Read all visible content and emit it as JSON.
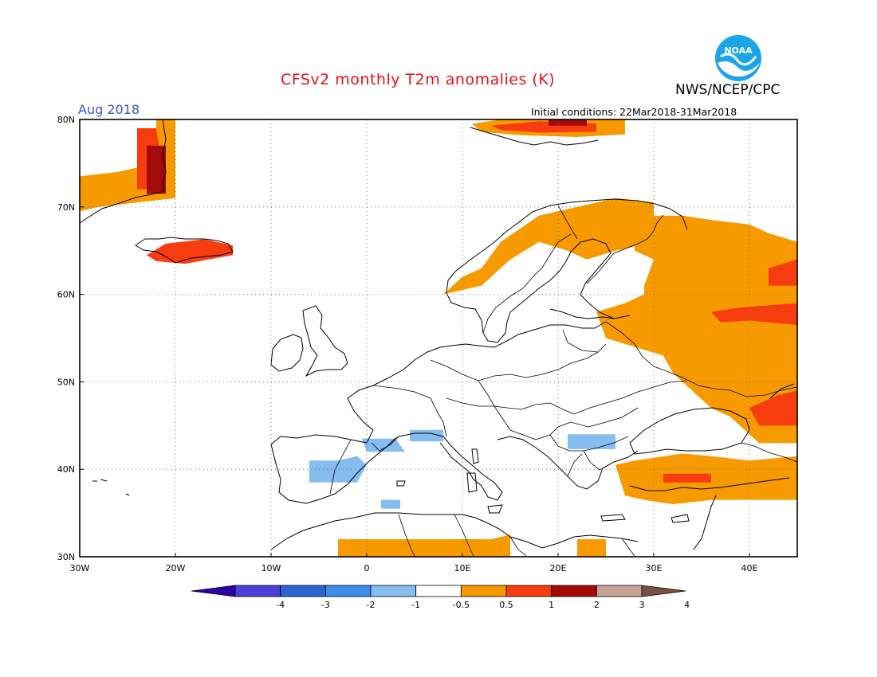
{
  "header": {
    "title": "CFSv2 monthly T2m anomalies (K)",
    "agency": "NWS/NCEP/CPC",
    "period": "Aug 2018",
    "initial_conditions": "Initial conditions: 22Mar2018-31Mar2018",
    "logo_text": "NOAA"
  },
  "map": {
    "lon_range": [
      -30,
      45
    ],
    "lat_range": [
      30,
      80
    ],
    "lon_ticks": [
      {
        "lon": -30,
        "label": "30W"
      },
      {
        "lon": -20,
        "label": "20W"
      },
      {
        "lon": -10,
        "label": "10W"
      },
      {
        "lon": 0,
        "label": "0"
      },
      {
        "lon": 10,
        "label": "10E"
      },
      {
        "lon": 20,
        "label": "20E"
      },
      {
        "lon": 30,
        "label": "30E"
      },
      {
        "lon": 40,
        "label": "40E"
      }
    ],
    "lat_ticks": [
      {
        "lat": 30,
        "label": "30N"
      },
      {
        "lat": 40,
        "label": "40N"
      },
      {
        "lat": 50,
        "label": "50N"
      },
      {
        "lat": 60,
        "label": "60N"
      },
      {
        "lat": 70,
        "label": "70N"
      },
      {
        "lat": 80,
        "label": "80N"
      }
    ],
    "grid": "dotted"
  },
  "colorbar": {
    "labels": [
      "-4",
      "-3",
      "-2",
      "-1",
      "-0.5",
      "0.5",
      "1",
      "2",
      "3",
      "4"
    ],
    "colors": [
      "#2b00a8",
      "#4a3fd6",
      "#2a64d4",
      "#3c8ee8",
      "#85bdf0",
      "#ffffff",
      "#f79a00",
      "#f73c10",
      "#a30a0a",
      "#c9a195",
      "#7a5040"
    ]
  },
  "anomaly_regions": [
    {
      "color": "#f79a00",
      "class": "0.5 to 1",
      "area": "Scandinavian coast and Finland",
      "pts": [
        [
          8,
          60
        ],
        [
          10,
          62
        ],
        [
          12,
          63
        ],
        [
          14,
          66
        ],
        [
          18,
          69
        ],
        [
          22,
          70
        ],
        [
          26,
          71
        ],
        [
          30,
          70.5
        ],
        [
          30,
          66
        ],
        [
          26,
          65
        ],
        [
          23,
          64
        ],
        [
          21,
          65
        ],
        [
          18,
          66
        ],
        [
          15,
          64
        ],
        [
          12,
          61
        ]
      ]
    },
    {
      "color": "#f79a00",
      "class": "0.5 to 1",
      "area": "Western Russia",
      "pts": [
        [
          28,
          67
        ],
        [
          30,
          69
        ],
        [
          33,
          69
        ],
        [
          36,
          68.5
        ],
        [
          40,
          68
        ],
        [
          42,
          67
        ],
        [
          45,
          66
        ],
        [
          45,
          43
        ],
        [
          41,
          43
        ],
        [
          38,
          46
        ],
        [
          36,
          47
        ],
        [
          34,
          49
        ],
        [
          32,
          51
        ],
        [
          31,
          53
        ],
        [
          28,
          54
        ],
        [
          25,
          55
        ],
        [
          24,
          58
        ],
        [
          27,
          59
        ],
        [
          29,
          60
        ],
        [
          29,
          61
        ],
        [
          30,
          64
        ],
        [
          28,
          65
        ]
      ]
    },
    {
      "color": "#f79a00",
      "class": "0.5 to 1",
      "area": "Turkey",
      "pts": [
        [
          26,
          40.5
        ],
        [
          28,
          41
        ],
        [
          30,
          41.3
        ],
        [
          33,
          41.8
        ],
        [
          36,
          41.5
        ],
        [
          40,
          41
        ],
        [
          45,
          41.5
        ],
        [
          45,
          36.5
        ],
        [
          41,
          36.5
        ],
        [
          36,
          36.5
        ],
        [
          32,
          36
        ],
        [
          29,
          36.5
        ],
        [
          27,
          37
        ]
      ]
    },
    {
      "color": "#f79a00",
      "class": "0.5 to 1",
      "area": "North Africa",
      "pts": [
        [
          -3,
          32
        ],
        [
          10,
          32
        ],
        [
          13,
          32
        ],
        [
          15,
          32.5
        ],
        [
          15,
          30
        ],
        [
          -3,
          30
        ]
      ]
    },
    {
      "color": "#f79a00",
      "class": "0.5 to 1",
      "area": "Egypt coast",
      "pts": [
        [
          22,
          32
        ],
        [
          25,
          32
        ],
        [
          25,
          30
        ],
        [
          22,
          30
        ]
      ]
    },
    {
      "color": "#f79a00",
      "class": "0.5 to 1",
      "area": "Greenland coast",
      "pts": [
        [
          -30,
          73.5
        ],
        [
          -26,
          74
        ],
        [
          -22,
          75
        ],
        [
          -22,
          80
        ],
        [
          -20,
          80
        ],
        [
          -20,
          71
        ],
        [
          -24,
          70.5
        ],
        [
          -28,
          70
        ],
        [
          -30,
          69.5
        ]
      ]
    },
    {
      "color": "#f79a00",
      "class": "0.5 to 1",
      "area": "Svalbard",
      "pts": [
        [
          11,
          79.5
        ],
        [
          14,
          80
        ],
        [
          20,
          80
        ],
        [
          27,
          80
        ],
        [
          27,
          78.3
        ],
        [
          22,
          78
        ],
        [
          16,
          78.2
        ],
        [
          12,
          78.6
        ]
      ]
    },
    {
      "color": "#f73c10",
      "class": "1 to 2",
      "area": "Western Russia warm core",
      "pts": [
        [
          36,
          58
        ],
        [
          39,
          58.5
        ],
        [
          45,
          59
        ],
        [
          45,
          56.5
        ],
        [
          40,
          57
        ],
        [
          37,
          56.8
        ]
      ]
    },
    {
      "color": "#f73c10",
      "class": "1 to 2",
      "area": "Lower Volga",
      "pts": [
        [
          40,
          47
        ],
        [
          43,
          48.5
        ],
        [
          45,
          49
        ],
        [
          45,
          45
        ],
        [
          41,
          45
        ]
      ]
    },
    {
      "color": "#f73c10",
      "class": "1 to 2",
      "area": "Northwest Russia",
      "pts": [
        [
          42,
          63
        ],
        [
          45,
          64
        ],
        [
          45,
          61
        ],
        [
          42,
          61
        ]
      ]
    },
    {
      "color": "#f73c10",
      "class": "1 to 2",
      "area": "Turkey interior",
      "pts": [
        [
          31,
          39.5
        ],
        [
          36,
          39.5
        ],
        [
          36,
          38.5
        ],
        [
          31,
          38.5
        ]
      ]
    },
    {
      "color": "#f73c10",
      "class": "1 to 2",
      "area": "Iceland",
      "pts": [
        [
          -23,
          64.5
        ],
        [
          -21,
          65.8
        ],
        [
          -17,
          66.3
        ],
        [
          -14,
          65.6
        ],
        [
          -14,
          64.5
        ],
        [
          -19,
          63.5
        ],
        [
          -22,
          63.8
        ]
      ]
    },
    {
      "color": "#f73c10",
      "class": "1 to 2",
      "area": "Svalbard core",
      "pts": [
        [
          13,
          79.3
        ],
        [
          18,
          79.8
        ],
        [
          24,
          79.5
        ],
        [
          24,
          78.6
        ],
        [
          18,
          78.5
        ],
        [
          14,
          78.8
        ]
      ]
    },
    {
      "color": "#f73c10",
      "class": "1 to 2",
      "area": "Greenland coast core",
      "pts": [
        [
          -24,
          79
        ],
        [
          -22,
          79
        ],
        [
          -21,
          72
        ],
        [
          -24,
          72
        ]
      ]
    },
    {
      "color": "#a30a0a",
      "class": "2 to 3",
      "area": "Greenland fjords",
      "pts": [
        [
          -23,
          77
        ],
        [
          -21,
          77
        ],
        [
          -21,
          71.5
        ],
        [
          -23,
          71.5
        ]
      ]
    },
    {
      "color": "#a30a0a",
      "class": "2 to 3",
      "area": "Svalbard east",
      "pts": [
        [
          19,
          80
        ],
        [
          23,
          80
        ],
        [
          23,
          79.3
        ],
        [
          19,
          79.3
        ]
      ]
    },
    {
      "color": "#85bdf0",
      "class": "-1 to -0.5",
      "area": "Central Spain",
      "pts": [
        [
          -6,
          41
        ],
        [
          -3,
          41
        ],
        [
          -1,
          41.5
        ],
        [
          0,
          40.5
        ],
        [
          -1,
          38.5
        ],
        [
          -6,
          38.5
        ]
      ]
    },
    {
      "color": "#85bdf0",
      "class": "-1 to -0.5",
      "area": "Pyrenees",
      "pts": [
        [
          -0.5,
          43.5
        ],
        [
          3,
          43.5
        ],
        [
          4,
          42
        ],
        [
          0,
          42
        ]
      ]
    },
    {
      "color": "#85bdf0",
      "class": "-1 to -0.5",
      "area": "Alps",
      "pts": [
        [
          4.5,
          44.5
        ],
        [
          8,
          44.5
        ],
        [
          8,
          43.2
        ],
        [
          4.5,
          43.2
        ]
      ]
    },
    {
      "color": "#85bdf0",
      "class": "-1 to -0.5",
      "area": "Bulgaria",
      "pts": [
        [
          21,
          44
        ],
        [
          26,
          44
        ],
        [
          26,
          42.3
        ],
        [
          21,
          42.3
        ]
      ]
    },
    {
      "color": "#85bdf0",
      "class": "-1 to -0.5",
      "area": "Algeria coast",
      "pts": [
        [
          1.5,
          36.5
        ],
        [
          3.5,
          36.5
        ],
        [
          3.5,
          35.5
        ],
        [
          1.5,
          35.5
        ]
      ]
    }
  ]
}
